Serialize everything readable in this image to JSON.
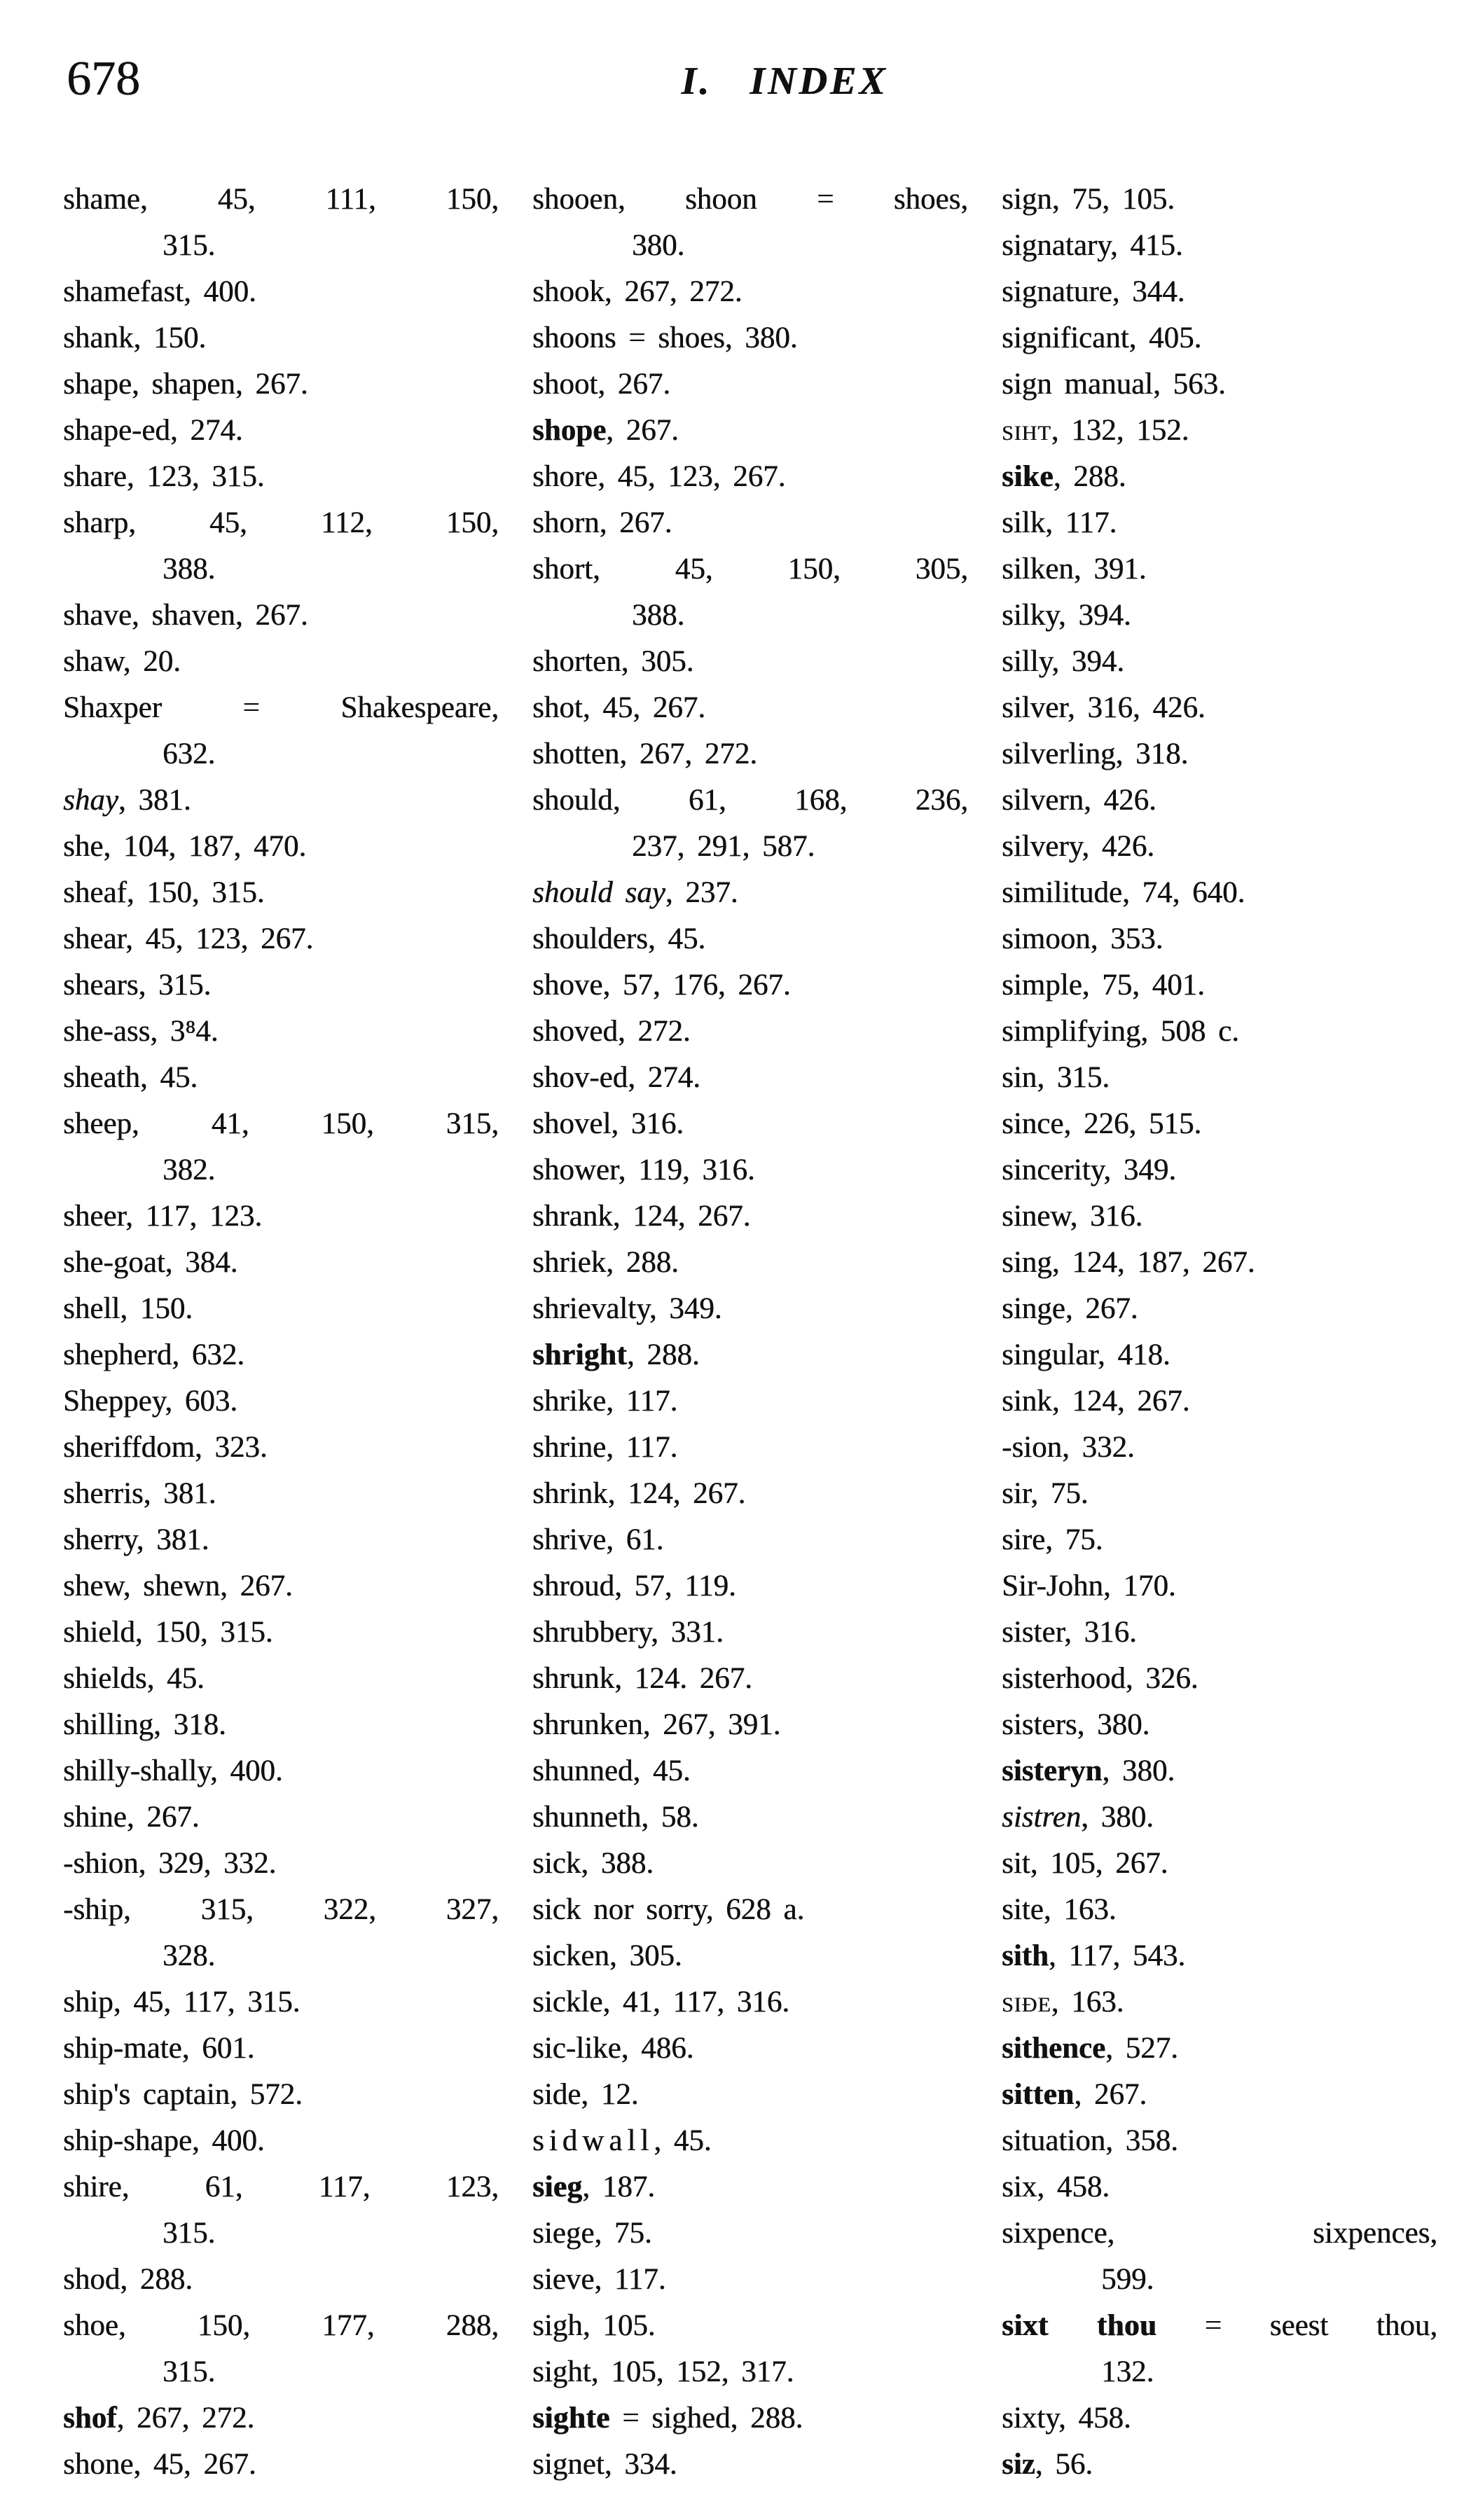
{
  "page": {
    "number": "678",
    "title": "I. INDEX"
  },
  "columns": [
    {
      "entries": [
        {
          "head": "shame",
          "tail": ", 45, 111, 150,",
          "cont": [
            "315."
          ]
        },
        {
          "head": "shamefast",
          "tail": ", 400."
        },
        {
          "head": "shank",
          "tail": ", 150."
        },
        {
          "head": "shape, shapen",
          "tail": ", 267."
        },
        {
          "head": "shape-ed",
          "tail": ", 274."
        },
        {
          "head": "share",
          "tail": ", 123, 315."
        },
        {
          "head": "sharp",
          "tail": ", 45, 112, 150,",
          "cont": [
            "388."
          ]
        },
        {
          "head": "shave, shaven",
          "tail": ", 267."
        },
        {
          "head": "shaw",
          "tail": ", 20."
        },
        {
          "head": "Shaxper = Shakespeare",
          "tail": ",",
          "cont": [
            "632."
          ]
        },
        {
          "head": "shay",
          "style": "italic",
          "tail": ", 381."
        },
        {
          "head": "she",
          "tail": ", 104, 187, 470."
        },
        {
          "head": "sheaf",
          "tail": ", 150, 315."
        },
        {
          "head": "shear",
          "tail": ", 45, 123, 267."
        },
        {
          "head": "shears",
          "tail": ", 315."
        },
        {
          "head": "she-ass",
          "tail": ", 3⁸4."
        },
        {
          "head": "sheath",
          "tail": ", 45."
        },
        {
          "head": "sheep",
          "tail": ", 41, 150, 315,",
          "cont": [
            "382."
          ]
        },
        {
          "head": "sheer",
          "tail": ", 117, 123."
        },
        {
          "head": "she-goat",
          "tail": ", 384."
        },
        {
          "head": "shell",
          "tail": ", 150."
        },
        {
          "head": "shepherd",
          "tail": ", 632."
        },
        {
          "head": "Sheppey",
          "tail": ", 603."
        },
        {
          "head": "sheriffdom",
          "tail": ", 323."
        },
        {
          "head": "sherris",
          "tail": ", 381."
        },
        {
          "head": "sherry",
          "tail": ", 381."
        },
        {
          "head": "shew, shewn",
          "tail": ", 267."
        },
        {
          "head": "shield",
          "tail": ", 150, 315."
        },
        {
          "head": "shields",
          "tail": ", 45."
        },
        {
          "head": "shilling",
          "tail": ", 318."
        },
        {
          "head": "shilly-shally",
          "tail": ", 400."
        },
        {
          "head": "shine",
          "tail": ", 267."
        },
        {
          "head": "-shion",
          "tail": ", 329, 332."
        },
        {
          "head": "-ship",
          "tail": ", 315, 322, 327,",
          "cont": [
            "328."
          ]
        },
        {
          "head": "ship",
          "tail": ", 45, 117, 315."
        },
        {
          "head": "ship-mate",
          "tail": ", 601."
        },
        {
          "head": "ship's captain",
          "tail": ", 572."
        },
        {
          "head": "ship-shape",
          "tail": ", 400."
        },
        {
          "head": "shire",
          "tail": ", 61, 117, 123,",
          "cont": [
            "315."
          ]
        },
        {
          "head": "shod",
          "tail": ", 288."
        },
        {
          "head": "shoe",
          "tail": ", 150, 177, 288,",
          "cont": [
            "315."
          ]
        },
        {
          "head": "shof",
          "style": "bold",
          "tail": ", 267, 272."
        },
        {
          "head": "shone",
          "tail": ", 45, 267."
        }
      ]
    },
    {
      "entries": [
        {
          "head": "shooen, shoon = shoes",
          "tail": ",",
          "cont": [
            "380."
          ]
        },
        {
          "head": "shook",
          "tail": ", 267, 272."
        },
        {
          "head": "shoons = shoes",
          "tail": ", 380."
        },
        {
          "head": "shoot",
          "tail": ", 267."
        },
        {
          "head": "shope",
          "style": "bold",
          "tail": ", 267."
        },
        {
          "head": "shore",
          "tail": ", 45, 123, 267."
        },
        {
          "head": "shorn",
          "tail": ", 267."
        },
        {
          "head": "short",
          "tail": ", 45, 150, 305,",
          "cont": [
            "388."
          ]
        },
        {
          "head": "shorten",
          "tail": ", 305."
        },
        {
          "head": "shot",
          "tail": ", 45, 267."
        },
        {
          "head": "shotten",
          "tail": ", 267, 272."
        },
        {
          "head": "should",
          "tail": ", 61, 168, 236,",
          "cont": [
            "237, 291, 587."
          ]
        },
        {
          "head": "should say",
          "style": "italic",
          "tail": ", 237."
        },
        {
          "head": "shoulders",
          "tail": ", 45."
        },
        {
          "head": "shove",
          "tail": ", 57, 176, 267."
        },
        {
          "head": "shoved",
          "tail": ", 272."
        },
        {
          "head": "shov-ed",
          "tail": ", 274."
        },
        {
          "head": "shovel",
          "tail": ", 316."
        },
        {
          "head": "shower",
          "tail": ", 119, 316."
        },
        {
          "head": "shrank",
          "tail": ", 124, 267."
        },
        {
          "head": "shriek",
          "tail": ", 288."
        },
        {
          "head": "shrievalty",
          "tail": ", 349."
        },
        {
          "head": "shright",
          "style": "gothic",
          "tail": ", 288."
        },
        {
          "head": "shrike",
          "tail": ", 117."
        },
        {
          "head": "shrine",
          "tail": ", 117."
        },
        {
          "head": "shrink",
          "tail": ", 124, 267."
        },
        {
          "head": "shrive",
          "tail": ", 61."
        },
        {
          "head": "shroud",
          "tail": ", 57, 119."
        },
        {
          "head": "shrubbery",
          "tail": ", 331."
        },
        {
          "head": "shrunk",
          "tail": ", 124. 267."
        },
        {
          "head": "shrunken",
          "tail": ", 267, 391."
        },
        {
          "head": "shunned",
          "tail": ", 45."
        },
        {
          "head": "shunneth",
          "tail": ", 58."
        },
        {
          "head": "sick",
          "tail": ", 388."
        },
        {
          "head": "sick nor sorry",
          "tail": ", 628 a."
        },
        {
          "head": "sicken",
          "tail": ", 305."
        },
        {
          "head": "sickle",
          "tail": ", 41, 117, 316."
        },
        {
          "head": "sic-like",
          "tail": ", 486."
        },
        {
          "head": "side",
          "tail": ", 12."
        },
        {
          "head": "sidwall",
          "style": "spaced",
          "tail": ", 45."
        },
        {
          "head": "sieg",
          "style": "gothic",
          "tail": ", 187."
        },
        {
          "head": "siege",
          "tail": ", 75."
        },
        {
          "head": "sieve",
          "tail": ", 117."
        },
        {
          "head": "sigh",
          "tail": ", 105."
        },
        {
          "head": "sight",
          "tail": ", 105, 152, 317."
        },
        {
          "head": "sighte",
          "style": "gothic",
          "tail": " = sighed, 288."
        },
        {
          "head": "signet",
          "tail": ", 334."
        }
      ]
    },
    {
      "entries": [
        {
          "head": "sign",
          "tail": ", 75, 105."
        },
        {
          "head": "signatary",
          "tail": ", 415."
        },
        {
          "head": "signature",
          "tail": ", 344."
        },
        {
          "head": "significant",
          "tail": ", 405."
        },
        {
          "head": "sign manual",
          "tail": ", 563."
        },
        {
          "head": "siht",
          "style": "smallcaps",
          "tail": ", 132, 152."
        },
        {
          "head": "sike",
          "style": "gothic",
          "tail": ", 288."
        },
        {
          "head": "silk",
          "tail": ", 117."
        },
        {
          "head": "silken",
          "tail": ", 391."
        },
        {
          "head": "silky",
          "tail": ", 394."
        },
        {
          "head": "silly",
          "tail": ", 394."
        },
        {
          "head": "silver",
          "tail": ", 316, 426."
        },
        {
          "head": "silverling",
          "tail": ", 318."
        },
        {
          "head": "silvern",
          "tail": ", 426."
        },
        {
          "head": "silvery",
          "tail": ", 426."
        },
        {
          "head": "similitude",
          "tail": ", 74, 640."
        },
        {
          "head": "simoon",
          "tail": ", 353."
        },
        {
          "head": "simple",
          "tail": ", 75, 401."
        },
        {
          "head": "simplifying",
          "tail": ", 508 c."
        },
        {
          "head": "sin",
          "tail": ", 315."
        },
        {
          "head": "since",
          "tail": ", 226, 515."
        },
        {
          "head": "sincerity",
          "tail": ", 349."
        },
        {
          "head": "sinew",
          "tail": ", 316."
        },
        {
          "head": "sing",
          "tail": ", 124, 187, 267."
        },
        {
          "head": "singe",
          "tail": ", 267."
        },
        {
          "head": "singular",
          "tail": ", 418."
        },
        {
          "head": "sink",
          "tail": ", 124, 267."
        },
        {
          "head": "-sion",
          "tail": ", 332."
        },
        {
          "head": "sir",
          "tail": ", 75."
        },
        {
          "head": "sire",
          "tail": ", 75."
        },
        {
          "head": "Sir-John",
          "tail": ", 170."
        },
        {
          "head": "sister",
          "tail": ", 316."
        },
        {
          "head": "sisterhood",
          "tail": ", 326."
        },
        {
          "head": "sisters",
          "tail": ", 380."
        },
        {
          "head": "sisteryn",
          "style": "bold",
          "tail": ", 380."
        },
        {
          "head": "sistren",
          "style": "italic",
          "tail": ", 380."
        },
        {
          "head": "sit",
          "tail": ", 105, 267."
        },
        {
          "head": "site",
          "tail": ", 163."
        },
        {
          "head": "sith",
          "style": "bold",
          "tail": ", 117, 543."
        },
        {
          "head": "siðe",
          "style": "smallcaps",
          "tail": ", 163."
        },
        {
          "head": "sithence",
          "style": "bold",
          "tail": ", 527."
        },
        {
          "head": "sitten",
          "style": "gothic",
          "tail": ", 267."
        },
        {
          "head": "situation",
          "tail": ", 358."
        },
        {
          "head": "six",
          "tail": ", 458."
        },
        {
          "head": "sixpence, sixpences",
          "tail": ",",
          "cont": [
            "599."
          ]
        },
        {
          "head": "sixt thou",
          "style": "gothic",
          "tail": " = seest thou,",
          "cont": [
            "132."
          ]
        },
        {
          "head": "sixty",
          "tail": ", 458."
        },
        {
          "head": "siz",
          "style": "bold",
          "tail": ", 56."
        }
      ]
    }
  ]
}
